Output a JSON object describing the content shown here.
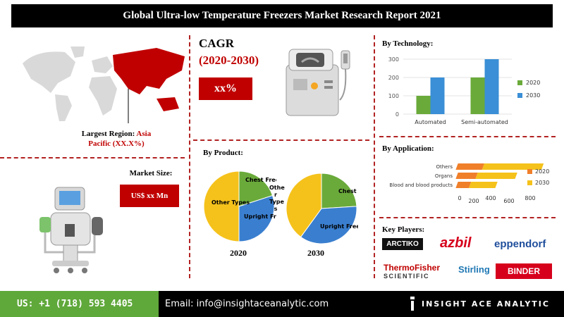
{
  "header": {
    "title": "Global Ultra-low Temperature Freezers Market Research Report 2021"
  },
  "region": {
    "label_prefix": "Largest Region:",
    "label_accent": "Asia Pacific (XX.X%)"
  },
  "cagr": {
    "title": "CAGR",
    "years": "(2020-2030)",
    "value": "xx%"
  },
  "market_size": {
    "label": "Market Size:",
    "value": "US$ xx Mn"
  },
  "product": {
    "title": "By Product:",
    "pie_2020_year": "2020",
    "pie_2030_year": "2030",
    "label_chest": "Chest Freezers",
    "label_upright": "Upright Freezers",
    "label_other_types": "Other Types",
    "label_other_vertical": [
      "Othe",
      "r",
      "Type",
      "s"
    ]
  },
  "technology": {
    "title": "By Technology:"
  },
  "application": {
    "title": "By Application:"
  },
  "key_players": {
    "title": "Key Players:",
    "logos": [
      "ARCTIKO",
      "azbil",
      "eppendorf",
      "ThermoFisher",
      "SCIENTIFIC",
      "Stirling",
      "BINDER"
    ]
  },
  "footer": {
    "phone": "US: +1 (718) 593 4405",
    "email": "Email: info@insightaceanalytic.com",
    "brand": "INSIGHT ACE ANALYTIC"
  },
  "colors": {
    "accent_red": "#c00000",
    "series_2020": "#6aaa3a",
    "series_2030": "#3a8fd6",
    "app_2020": "#f07f2a",
    "app_2030": "#f5c21b",
    "pie_green": "#6aaa3a",
    "pie_blue": "#3a7fcf",
    "pie_yellow": "#f5c21b",
    "footer_green": "#5fa83a"
  },
  "chart_data": [
    {
      "type": "pie",
      "name": "By Product 2020",
      "labels": [
        "Chest Freezers",
        "Upright Freezers",
        "Other Types"
      ],
      "values": [
        20,
        30,
        50
      ]
    },
    {
      "type": "pie",
      "name": "By Product 2030",
      "labels": [
        "Chest Freezers",
        "Upright Freezers",
        "Other Types"
      ],
      "values": [
        24,
        36,
        40
      ]
    },
    {
      "type": "bar",
      "categories": [
        "Automated",
        "Semi-automated"
      ],
      "series": [
        {
          "name": "2020",
          "values": [
            100,
            200
          ]
        },
        {
          "name": "2030",
          "values": [
            200,
            300
          ]
        }
      ],
      "ylim": [
        0,
        300
      ],
      "yticks": [
        0,
        100,
        200,
        300
      ],
      "legend": "right"
    },
    {
      "type": "bar",
      "orientation": "horizontal",
      "categories": [
        "Others",
        "Organs",
        "Blood and blood products"
      ],
      "series": [
        {
          "name": "2020",
          "values": [
            200,
            150,
            100
          ]
        },
        {
          "name": "2030",
          "values": [
            450,
            300,
            200
          ]
        }
      ],
      "xlim": [
        0,
        800
      ],
      "xticks": [
        0,
        200,
        400,
        600,
        800
      ],
      "stacked": true,
      "legend": "right"
    }
  ]
}
